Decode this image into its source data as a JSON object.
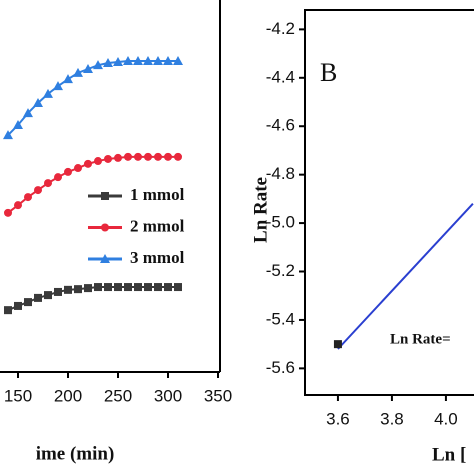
{
  "chart_data": [
    {
      "type": "line",
      "xlabel": "ime (min)",
      "x": [
        140,
        150,
        160,
        170,
        180,
        190,
        200,
        210,
        220,
        230,
        240,
        250,
        260,
        270,
        280,
        290,
        300,
        310
      ],
      "xlim": [
        132,
        350
      ],
      "xticks": [
        150,
        200,
        250,
        300,
        350
      ],
      "ylim": [
        0,
        100
      ],
      "series": [
        {
          "name": "1 mmol",
          "color": "#3a3a3a",
          "marker": "square",
          "values": [
            17.1,
            18.3,
            19.4,
            20.6,
            21.4,
            22.3,
            22.9,
            23.1,
            23.4,
            23.7,
            23.7,
            23.7,
            23.7,
            23.7,
            23.7,
            23.7,
            23.7,
            23.7
          ]
        },
        {
          "name": "2 mmol",
          "color": "#e8283c",
          "marker": "circle",
          "values": [
            44.9,
            47.1,
            49.4,
            51.4,
            53.4,
            55.1,
            56.6,
            57.7,
            58.9,
            59.7,
            60.3,
            60.6,
            60.9,
            60.9,
            60.9,
            60.9,
            60.9,
            60.9
          ]
        },
        {
          "name": "3 mmol",
          "color": "#2f7fe0",
          "marker": "triangle",
          "values": [
            67.1,
            70,
            73.4,
            76.3,
            78.9,
            81.1,
            83.1,
            84.9,
            86,
            87.1,
            87.7,
            88,
            88.3,
            88.3,
            88.3,
            88.3,
            88.3,
            88.3
          ]
        }
      ]
    },
    {
      "type": "scatter",
      "panel": "B",
      "annotation": "Ln Rate=",
      "xlabel": "Ln [",
      "ylabel": "Ln Rate",
      "xlim": [
        3.478,
        4.104
      ],
      "xticks": [
        {
          "value": 3.6,
          "label": "3.6"
        },
        {
          "value": 3.8,
          "label": "3.8"
        },
        {
          "value": 4.0,
          "label": "4.0"
        }
      ],
      "ylim": [
        -5.71,
        -4.12
      ],
      "yticks": [
        -4.2,
        -4.4,
        -4.6,
        -4.8,
        {
          "value": -5.0,
          "label": "-5.0"
        },
        -5.2,
        -5.4,
        -5.6
      ],
      "series": [
        {
          "x": [
            3.6
          ],
          "values": [
            -5.5
          ],
          "color": "#222222"
        }
      ],
      "fit": {
        "x": [
          3.6,
          4.1
        ],
        "values": [
          -5.52,
          -4.92
        ],
        "color": "#2a3fd0"
      }
    }
  ]
}
